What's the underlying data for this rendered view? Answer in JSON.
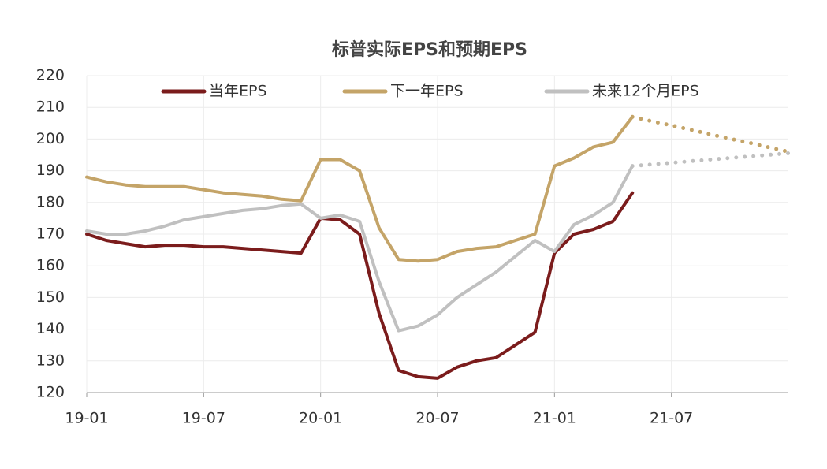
{
  "chart_data": {
    "type": "line",
    "title": "标普实际EPS和预期EPS",
    "categories": [
      "19-01",
      null,
      null,
      null,
      null,
      null,
      "19-07",
      null,
      null,
      null,
      null,
      null,
      "20-01",
      null,
      null,
      null,
      null,
      null,
      "20-07",
      null,
      null,
      null,
      null,
      null,
      "21-01",
      null,
      null,
      null,
      null,
      null,
      "21-07",
      null,
      null,
      null,
      null,
      null,
      null
    ],
    "ylim": [
      120,
      220
    ],
    "yticks": [
      120,
      130,
      140,
      150,
      160,
      170,
      180,
      190,
      200,
      210,
      220
    ],
    "grid": true,
    "legend": "top",
    "series": [
      {
        "name": "当年EPS",
        "color": "#7b1c1c",
        "values": [
          170,
          168,
          167,
          166,
          166.5,
          166.5,
          166,
          166,
          165.5,
          165,
          164.5,
          164,
          175,
          174.5,
          170,
          145,
          127,
          125,
          124.5,
          128,
          130,
          131,
          135,
          139,
          164,
          170,
          171.5,
          174,
          183,
          null,
          null,
          null,
          null,
          null,
          null,
          null,
          null
        ]
      },
      {
        "name": "下一年EPS",
        "color": "#c4a468",
        "values": [
          188,
          186.5,
          185.5,
          185,
          185,
          185,
          184,
          183,
          182.5,
          182,
          181,
          180.5,
          193.5,
          193.5,
          190,
          172,
          162,
          161.5,
          162,
          164.5,
          165.5,
          166,
          168,
          170,
          191.5,
          194,
          197.5,
          199,
          207,
          null,
          null,
          null,
          null,
          null,
          null,
          null,
          null
        ]
      },
      {
        "name": "未来12个月EPS",
        "color": "#c0c0c0",
        "values": [
          171,
          170,
          170,
          171,
          172.5,
          174.5,
          175.5,
          176.5,
          177.5,
          178,
          179,
          179.5,
          175,
          176,
          174,
          155,
          139.5,
          141,
          144.5,
          150,
          154,
          158,
          163,
          168,
          164.5,
          173,
          176,
          180,
          191.5,
          null,
          null,
          null,
          null,
          null,
          null,
          null,
          null
        ]
      },
      {
        "color": "#c4a468",
        "style": "dotted",
        "values": [
          null,
          null,
          null,
          null,
          null,
          null,
          null,
          null,
          null,
          null,
          null,
          null,
          null,
          null,
          null,
          null,
          null,
          null,
          null,
          null,
          null,
          null,
          null,
          null,
          null,
          null,
          null,
          null,
          207,
          205.6,
          204.3,
          202.9,
          201.5,
          200.1,
          198.8,
          197.4,
          196
        ]
      },
      {
        "color": "#c0c0c0",
        "style": "dotted",
        "values": [
          null,
          null,
          null,
          null,
          null,
          null,
          null,
          null,
          null,
          null,
          null,
          null,
          null,
          null,
          null,
          null,
          null,
          null,
          null,
          null,
          null,
          null,
          null,
          null,
          null,
          null,
          null,
          null,
          191.5,
          192,
          192.5,
          193,
          193.5,
          194,
          194.5,
          195,
          195.5
        ]
      }
    ]
  }
}
